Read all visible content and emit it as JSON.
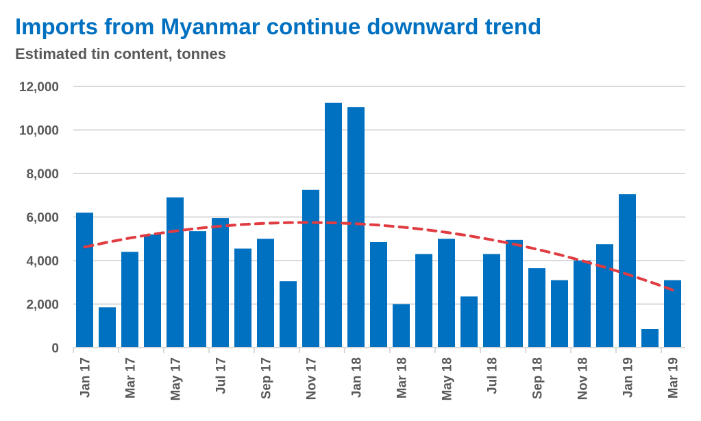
{
  "chart_data": {
    "type": "bar",
    "title": "Imports from Myanmar continue downward trend",
    "subtitle": "Estimated tin content, tonnes",
    "xlabel": "",
    "ylabel": "",
    "ylim": [
      0,
      12000
    ],
    "yticks": [
      0,
      2000,
      4000,
      6000,
      8000,
      10000,
      12000
    ],
    "ytick_labels": [
      "0",
      "2,000",
      "4,000",
      "6,000",
      "8,000",
      "10,000",
      "12,000"
    ],
    "grid": true,
    "categories": [
      "Jan 17",
      "Feb 17",
      "Mar 17",
      "Apr 17",
      "May 17",
      "Jun 17",
      "Jul 17",
      "Aug 17",
      "Sep 17",
      "Oct 17",
      "Nov 17",
      "Dec 17",
      "Jan 18",
      "Feb 18",
      "Mar 18",
      "Apr 18",
      "May 18",
      "Jun 18",
      "Jul 18",
      "Aug 18",
      "Sep 18",
      "Oct 18",
      "Nov 18",
      "Dec 18",
      "Jan 19",
      "Feb 19",
      "Mar 19"
    ],
    "xtick_labels": [
      "Jan 17",
      "Mar 17",
      "May 17",
      "Jul 17",
      "Sep 17",
      "Nov 17",
      "Jan 18",
      "Mar 18",
      "May 18",
      "Jul 18",
      "Sep 18",
      "Nov 18",
      "Jan 19",
      "Mar 19"
    ],
    "values": [
      6200,
      1850,
      4400,
      5200,
      6900,
      5350,
      5950,
      4550,
      5000,
      3050,
      7250,
      11250,
      11050,
      4850,
      2000,
      4300,
      5000,
      2350,
      4300,
      4950,
      3650,
      3100,
      4000,
      4750,
      7050,
      850,
      3100
    ],
    "trendline": {
      "type": "polynomial",
      "values": [
        4620,
        4839,
        5035,
        5207,
        5355,
        5480,
        5580,
        5658,
        5712,
        5743,
        5750,
        5733,
        5692,
        5629,
        5541,
        5430,
        5295,
        5137,
        4955,
        4750,
        4521,
        4268,
        3993,
        3693,
        3370,
        3023,
        2652
      ],
      "color": "#E03C41",
      "style": "dashed"
    },
    "bar_color": "#0070C0"
  }
}
